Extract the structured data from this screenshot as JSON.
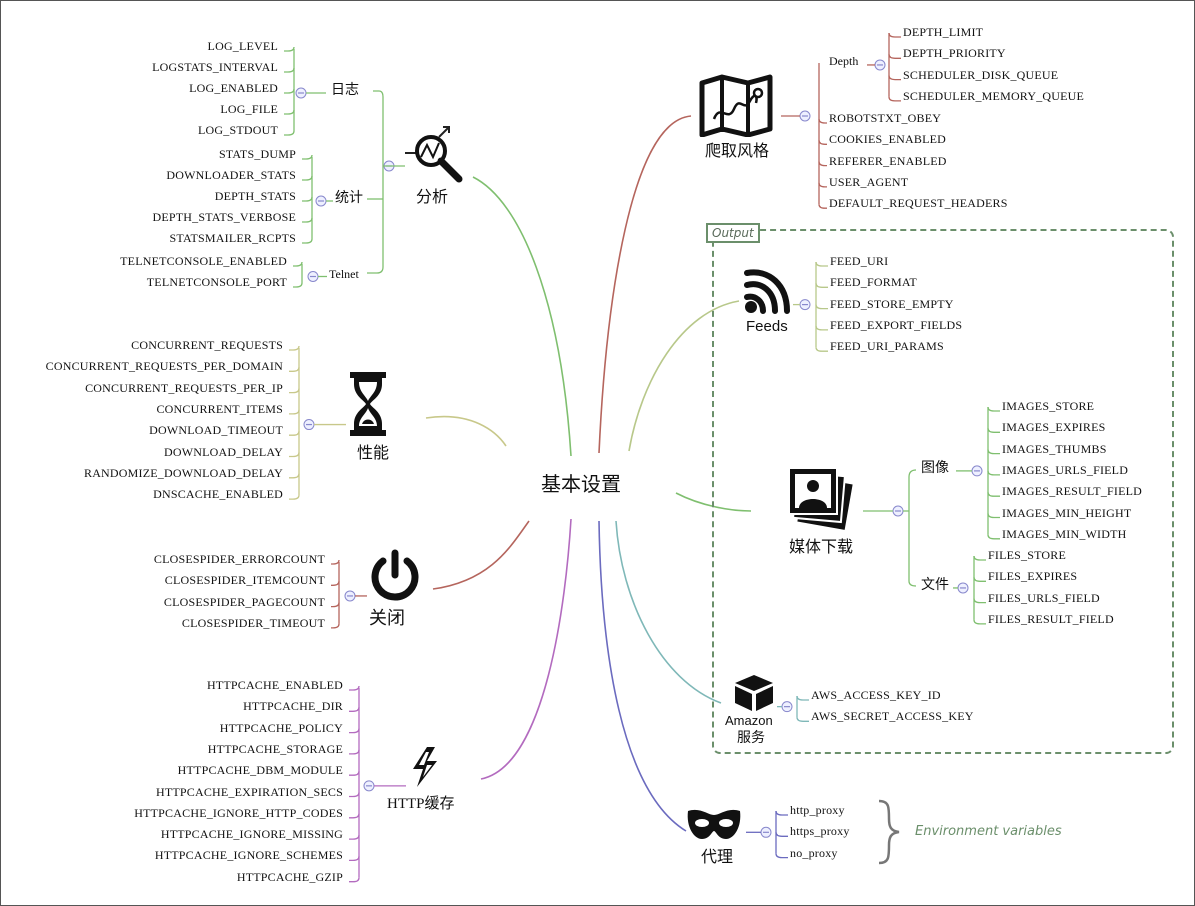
{
  "colors": {
    "analysis": "#7fbf6f",
    "crawl": "#b5655d",
    "feeds": "#b8c88a",
    "media": "#7fbf6f",
    "perf": "#c8c88a",
    "close": "#b5655d",
    "aws": "#7fb8b8",
    "httpcache": "#b36bbf",
    "proxy": "#6b6bbf",
    "output_box": "#6b8f6b",
    "toggle": "#8888cc"
  },
  "center": "基本设置",
  "analysis": {
    "title": "分析",
    "icon": "magnifier-chart-icon",
    "log": {
      "label": "日志",
      "items": [
        "LOG_LEVEL",
        "LOGSTATS_INTERVAL",
        "LOG_ENABLED",
        "LOG_FILE",
        "LOG_STDOUT"
      ]
    },
    "stats": {
      "label": "统计",
      "items": [
        "STATS_DUMP",
        "DOWNLOADER_STATS",
        "DEPTH_STATS",
        "DEPTH_STATS_VERBOSE",
        "STATSMAILER_RCPTS"
      ]
    },
    "telnet": {
      "label": "Telnet",
      "items": [
        "TELNETCONSOLE_ENABLED",
        "TELNETCONSOLE_PORT"
      ]
    }
  },
  "performance": {
    "title": "性能",
    "icon": "hourglass-icon",
    "items": [
      "CONCURRENT_REQUESTS",
      "CONCURRENT_REQUESTS_PER_DOMAIN",
      "CONCURRENT_REQUESTS_PER_IP",
      "CONCURRENT_ITEMS",
      "DOWNLOAD_TIMEOUT",
      "DOWNLOAD_DELAY",
      "RANDOMIZE_DOWNLOAD_DELAY",
      "DNSCACHE_ENABLED"
    ]
  },
  "close": {
    "title": "关闭",
    "icon": "power-icon",
    "items": [
      "CLOSESPIDER_ERRORCOUNT",
      "CLOSESPIDER_ITEMCOUNT",
      "CLOSESPIDER_PAGECOUNT",
      "CLOSESPIDER_TIMEOUT"
    ]
  },
  "httpcache": {
    "title": "HTTP缓存",
    "icon": "lightning-icon",
    "items": [
      "HTTPCACHE_ENABLED",
      "HTTPCACHE_DIR",
      "HTTPCACHE_POLICY",
      "HTTPCACHE_STORAGE",
      "HTTPCACHE_DBM_MODULE",
      "HTTPCACHE_EXPIRATION_SECS",
      "HTTPCACHE_IGNORE_HTTP_CODES",
      "HTTPCACHE_IGNORE_MISSING",
      "HTTPCACHE_IGNORE_SCHEMES",
      "HTTPCACHE_GZIP"
    ]
  },
  "crawl": {
    "title": "爬取风格",
    "icon": "map-icon",
    "depth": {
      "label": "Depth",
      "items": [
        "DEPTH_LIMIT",
        "DEPTH_PRIORITY",
        "SCHEDULER_DISK_QUEUE",
        "SCHEDULER_MEMORY_QUEUE"
      ]
    },
    "items": [
      "ROBOTSTXT_OBEY",
      "COOKIES_ENABLED",
      "REFERER_ENABLED",
      "USER_AGENT",
      "DEFAULT_REQUEST_HEADERS"
    ]
  },
  "output": {
    "label": "Output",
    "feeds": {
      "title": "Feeds",
      "icon": "rss-icon",
      "items": [
        "FEED_URI",
        "FEED_FORMAT",
        "FEED_STORE_EMPTY",
        "FEED_EXPORT_FIELDS",
        "FEED_URI_PARAMS"
      ]
    },
    "media": {
      "title": "媒体下载",
      "icon": "photos-icon",
      "images": {
        "label": "图像",
        "items": [
          "IMAGES_STORE",
          "IMAGES_EXPIRES",
          "IMAGES_THUMBS",
          "IMAGES_URLS_FIELD",
          "IMAGES_RESULT_FIELD",
          "IMAGES_MIN_HEIGHT",
          "IMAGES_MIN_WIDTH"
        ]
      },
      "files": {
        "label": "文件",
        "items": [
          "FILES_STORE",
          "FILES_EXPIRES",
          "FILES_URLS_FIELD",
          "FILES_RESULT_FIELD"
        ]
      }
    },
    "aws": {
      "title_line1": "Amazon",
      "title_line2": "服务",
      "icon": "cube-icon",
      "items": [
        "AWS_ACCESS_KEY_ID",
        "AWS_SECRET_ACCESS_KEY"
      ]
    }
  },
  "proxy": {
    "title": "代理",
    "icon": "mask-icon",
    "items": [
      "http_proxy",
      "https_proxy",
      "no_proxy"
    ],
    "note": "Environment variables"
  }
}
